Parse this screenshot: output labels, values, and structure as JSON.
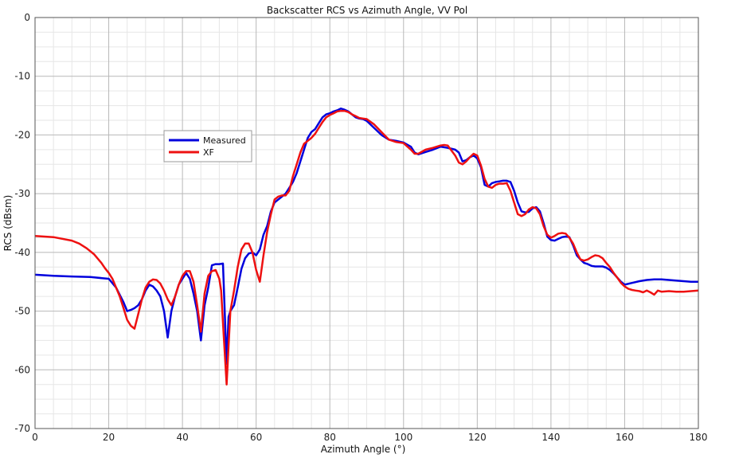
{
  "chart_data": {
    "type": "line",
    "title": "Backscatter RCS vs Azimuth Angle, VV Pol",
    "xlabel": "Azimuth Angle (°)",
    "ylabel": "RCS (dBsm)",
    "xlim": [
      0,
      180
    ],
    "ylim": [
      -70,
      0
    ],
    "x_ticks": [
      0,
      20,
      40,
      60,
      80,
      100,
      120,
      140,
      160,
      180
    ],
    "y_ticks": [
      0,
      -10,
      -20,
      -30,
      -40,
      -50,
      -60,
      -70
    ],
    "x_tick_labels": [
      "0",
      "20",
      "40",
      "60",
      "80",
      "100",
      "120",
      "140",
      "160",
      "180"
    ],
    "y_tick_labels": [
      "0",
      "-10",
      "-20",
      "-30",
      "-40",
      "-50",
      "-60",
      "-70"
    ],
    "grid": true,
    "legend": "upper-left",
    "series": [
      {
        "name": "Measured",
        "color": "#0000dd",
        "x": [
          0,
          5,
          10,
          15,
          20,
          22,
          24,
          25,
          26,
          27,
          28,
          29,
          30,
          31,
          32,
          33,
          34,
          35,
          36,
          37,
          38,
          39,
          40,
          41,
          42,
          43,
          44,
          45,
          46,
          47,
          48,
          49,
          50,
          51,
          52,
          52.5,
          53,
          54,
          55,
          56,
          57,
          58,
          59,
          60,
          61,
          62,
          63,
          64,
          65,
          66,
          67,
          68,
          69,
          70,
          71,
          72,
          73,
          74,
          75,
          76,
          77,
          78,
          79,
          80,
          81,
          82,
          83,
          84,
          85,
          86,
          87,
          88,
          89,
          90,
          92,
          94,
          96,
          98,
          100,
          102,
          103,
          104,
          106,
          108,
          110,
          112,
          114,
          115,
          116,
          117,
          118,
          119,
          120,
          121,
          122,
          123,
          124,
          125,
          126,
          127,
          128,
          129,
          130,
          131,
          132,
          133,
          134,
          135,
          136,
          137,
          138,
          139,
          140,
          141,
          142,
          143,
          144,
          145,
          146,
          147,
          148,
          149,
          150,
          151,
          152,
          153,
          154,
          155,
          156,
          157,
          158,
          159,
          160,
          162,
          164,
          166,
          168,
          170,
          172,
          174,
          176,
          178,
          180
        ],
        "y": [
          -43.8,
          -44,
          -44.1,
          -44.2,
          -44.5,
          -46,
          -48.5,
          -50,
          -49.8,
          -49.5,
          -49,
          -48,
          -46.5,
          -45.5,
          -45.8,
          -46.5,
          -47.5,
          -50,
          -54.5,
          -50,
          -47.5,
          -45.5,
          -44.5,
          -43.5,
          -44.5,
          -47,
          -50,
          -55,
          -49,
          -46,
          -42.2,
          -42,
          -42,
          -41.9,
          -59,
          -51,
          -50,
          -49,
          -46,
          -42.8,
          -41,
          -40.2,
          -40,
          -40.5,
          -39.5,
          -37,
          -35.5,
          -33,
          -31.5,
          -31,
          -30.5,
          -30,
          -29,
          -28,
          -26.5,
          -24.5,
          -22.5,
          -20.5,
          -19.5,
          -19,
          -18,
          -17,
          -16.5,
          -16.3,
          -16,
          -15.8,
          -15.5,
          -15.7,
          -16,
          -16.5,
          -17,
          -17.2,
          -17.3,
          -17.6,
          -18.8,
          -20,
          -20.8,
          -21,
          -21.3,
          -22,
          -23,
          -23.3,
          -22.9,
          -22.5,
          -22,
          -22.2,
          -22.5,
          -23,
          -24.5,
          -24.3,
          -23.8,
          -23.5,
          -24,
          -25.5,
          -28.5,
          -28.8,
          -28.2,
          -28,
          -27.9,
          -27.8,
          -27.8,
          -28,
          -29.5,
          -31.5,
          -33,
          -33.2,
          -33.1,
          -32.5,
          -32.3,
          -33,
          -35,
          -37.3,
          -37.9,
          -38,
          -37.7,
          -37.4,
          -37.3,
          -37.4,
          -38.8,
          -40.5,
          -41.2,
          -41.8,
          -42,
          -42.3,
          -42.4,
          -42.4,
          -42.4,
          -42.6,
          -43,
          -43.6,
          -44.3,
          -45,
          -45.5,
          -45.2,
          -44.9,
          -44.7,
          -44.6,
          -44.6,
          -44.7,
          -44.8,
          -44.9,
          -45,
          -45
        ]
      },
      {
        "name": "XF",
        "color": "#ee1111",
        "x": [
          0,
          5,
          10,
          12,
          14,
          16,
          18,
          19,
          20,
          21,
          22,
          23,
          24,
          25,
          26,
          27,
          28,
          29,
          30,
          31,
          32,
          33,
          34,
          35,
          36,
          37,
          38,
          39,
          40,
          41,
          42,
          43,
          44,
          45,
          46,
          47,
          48,
          49,
          50,
          50.5,
          51,
          52,
          52.5,
          53,
          54,
          55,
          56,
          57,
          58,
          59,
          60,
          61,
          62,
          63,
          64,
          65,
          66,
          67,
          68,
          69,
          70,
          71,
          72,
          73,
          74,
          75,
          76,
          77,
          78,
          79,
          80,
          81,
          82,
          83,
          84,
          85,
          86,
          87,
          88,
          89,
          90,
          92,
          94,
          96,
          98,
          100,
          102,
          103,
          104,
          106,
          108,
          110,
          111,
          112,
          114,
          115,
          116,
          117,
          118,
          119,
          120,
          121,
          122,
          123,
          124,
          125,
          126,
          127,
          128,
          129,
          130,
          131,
          132,
          133,
          134,
          135,
          136,
          137,
          138,
          139,
          140,
          141,
          142,
          143,
          144,
          145,
          146,
          147,
          148,
          149,
          150,
          151,
          152,
          153,
          154,
          155,
          156,
          157,
          158,
          159,
          160,
          161,
          162,
          163,
          164,
          165,
          166,
          167,
          168,
          169,
          170,
          172,
          174,
          176,
          178,
          180
        ],
        "y": [
          -37.2,
          -37.4,
          -38,
          -38.5,
          -39.3,
          -40.3,
          -41.8,
          -42.7,
          -43.5,
          -44.5,
          -46,
          -47.5,
          -49.5,
          -51.5,
          -52.5,
          -53,
          -50.5,
          -48,
          -46,
          -45,
          -44.6,
          -44.7,
          -45.3,
          -46.5,
          -48,
          -49,
          -47.5,
          -45.5,
          -44,
          -43.2,
          -43.2,
          -45,
          -49,
          -53.5,
          -47,
          -44,
          -43.2,
          -43,
          -44.5,
          -46.5,
          -52,
          -62.5,
          -56,
          -50,
          -46.5,
          -42.5,
          -39.5,
          -38.5,
          -38.5,
          -40,
          -43,
          -45,
          -40.5,
          -36.5,
          -33.5,
          -31,
          -30.5,
          -30.3,
          -30.3,
          -29.5,
          -27,
          -25,
          -23,
          -21.5,
          -21,
          -20.5,
          -19.8,
          -18.8,
          -17.8,
          -17,
          -16.6,
          -16.3,
          -16,
          -15.9,
          -15.9,
          -16.1,
          -16.5,
          -16.8,
          -17.1,
          -17.2,
          -17.3,
          -18.2,
          -19.5,
          -20.8,
          -21.2,
          -21.4,
          -22.5,
          -23.2,
          -23.2,
          -22.5,
          -22.2,
          -21.8,
          -21.7,
          -21.8,
          -23.5,
          -24.7,
          -25,
          -24.5,
          -23.8,
          -23.2,
          -23.5,
          -25.2,
          -27.5,
          -28.8,
          -29,
          -28.5,
          -28.3,
          -28.3,
          -28.2,
          -29.5,
          -31.5,
          -33.5,
          -33.8,
          -33.5,
          -32.7,
          -32.3,
          -32.5,
          -33.5,
          -35.5,
          -37,
          -37.5,
          -37.2,
          -36.8,
          -36.7,
          -36.8,
          -37.5,
          -38.5,
          -40,
          -41.2,
          -41.4,
          -41.2,
          -40.8,
          -40.5,
          -40.6,
          -41,
          -41.8,
          -42.5,
          -43.5,
          -44.3,
          -45.2,
          -45.8,
          -46.2,
          -46.4,
          -46.5,
          -46.6,
          -46.8,
          -46.5,
          -46.8,
          -47.2,
          -46.5,
          -46.7,
          -46.6,
          -46.7,
          -46.7,
          -46.6,
          -46.5
        ]
      }
    ]
  }
}
